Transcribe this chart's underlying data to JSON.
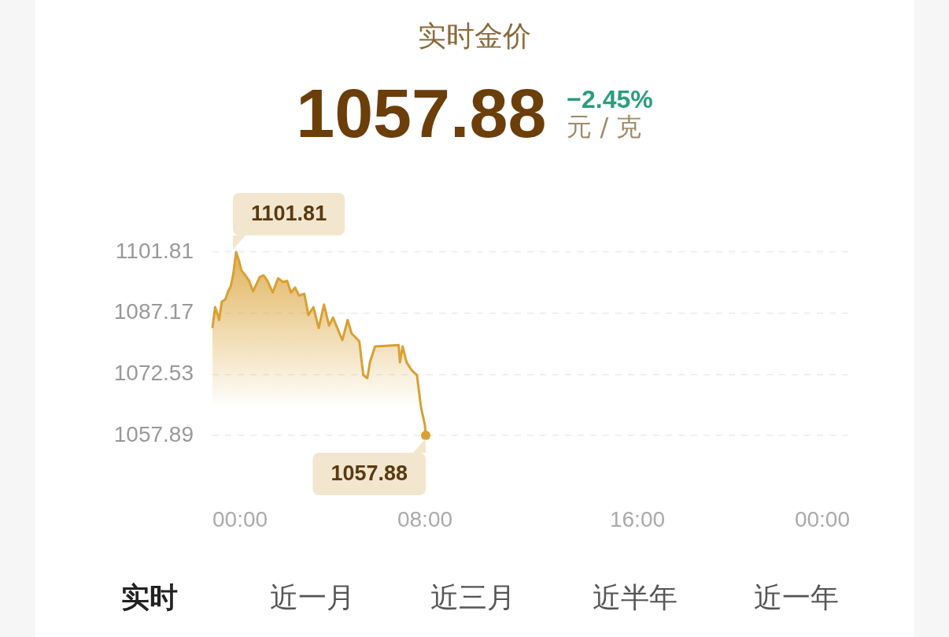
{
  "chart_data": {
    "type": "area",
    "title": "实时金价",
    "subtitle": "1057.88",
    "x": [
      0,
      0.1,
      0.2,
      0.25,
      0.35,
      0.49,
      0.59,
      0.69,
      0.79,
      0.89,
      0.99,
      1.09,
      1.24,
      1.38,
      1.53,
      1.78,
      1.93,
      2.07,
      2.27,
      2.47,
      2.67,
      2.81,
      2.96,
      3.11,
      3.26,
      3.46,
      3.61,
      3.8,
      4.0,
      4.2,
      4.39,
      4.54,
      4.89,
      5.09,
      5.24,
      5.53,
      5.68,
      5.83,
      5.93,
      6.12,
      7.01,
      7.06,
      7.16,
      7.31,
      7.5,
      7.7,
      7.85,
      8.0,
      8.03
    ],
    "series": [
      {
        "color": "#d9a032",
        "values": [
          1083.6,
          1088.6,
          1086.7,
          1085.5,
          1089.9,
          1090.5,
          1092.4,
          1093.6,
          1096.8,
          1101.81,
          1099.9,
          1097.4,
          1096.2,
          1094.9,
          1092.4,
          1095.8,
          1096.2,
          1094.9,
          1092.1,
          1095.5,
          1094.6,
          1094.9,
          1092.1,
          1093.3,
          1091.4,
          1091.8,
          1086.7,
          1088.6,
          1083.6,
          1089.2,
          1084.2,
          1086.1,
          1080.7,
          1085.5,
          1082.3,
          1080.4,
          1072.3,
          1071.6,
          1075.4,
          1079.2,
          1079.5,
          1075.4,
          1079.2,
          1075.4,
          1073.5,
          1072.3,
          1064.7,
          1060.3,
          1057.88
        ]
      }
    ],
    "xlim": [
      0,
      24
    ],
    "xticks": [
      {
        "value": 0,
        "label": "00:00"
      },
      {
        "value": 8,
        "label": "08:00"
      },
      {
        "value": 16,
        "label": "16:00"
      },
      {
        "value": 24,
        "label": "00:00"
      }
    ],
    "ylim": [
      1057.88,
      1101.81
    ],
    "yticks": [
      1057.89,
      1072.53,
      1087.17,
      1101.81
    ],
    "grid": "y",
    "legend": false,
    "annotations": [
      "−2.45%",
      "元 / 克",
      {
        "text": "1101.81",
        "x": 0.89,
        "y": 1101.81
      },
      {
        "text": "1057.88",
        "x": 8.03,
        "y": 1057.88
      },
      "实时",
      "近一月",
      "近三月",
      "近半年",
      "近一年"
    ]
  }
}
